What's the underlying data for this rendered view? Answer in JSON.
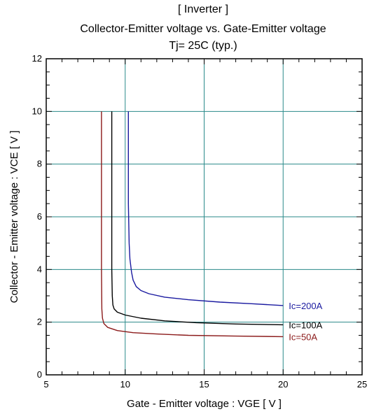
{
  "chart_data": {
    "type": "line",
    "title": [
      "[ Inverter ]",
      "Collector-Emitter voltage  vs. Gate-Emitter voltage",
      "Tj= 25C  (typ.)"
    ],
    "xlabel": "Gate - Emitter voltage  :  VGE  [ V ]",
    "ylabel": "Collector - Emitter voltage  :  VCE  [ V ]",
    "xlim": [
      5,
      25
    ],
    "ylim": [
      0,
      12
    ],
    "xticks": [
      "5",
      "10",
      "15",
      "20",
      "25"
    ],
    "yticks": [
      "0",
      "2",
      "4",
      "6",
      "8",
      "10",
      "12"
    ],
    "grid": true,
    "series": [
      {
        "name": "Ic=200A",
        "color": "#1a1aa0",
        "x": [
          10.2,
          10.2,
          10.25,
          10.3,
          10.4,
          10.5,
          10.7,
          11.0,
          11.5,
          12.5,
          14.0,
          16.0,
          18.0,
          20.0
        ],
        "y": [
          10.0,
          6.5,
          5.0,
          4.4,
          3.9,
          3.6,
          3.35,
          3.2,
          3.08,
          2.95,
          2.85,
          2.76,
          2.7,
          2.63
        ]
      },
      {
        "name": "Ic=100A",
        "color": "#000000",
        "x": [
          9.15,
          9.15,
          9.18,
          9.22,
          9.3,
          9.5,
          10.0,
          11.0,
          12.5,
          14.5,
          17.0,
          20.0
        ],
        "y": [
          10.0,
          4.0,
          3.0,
          2.65,
          2.5,
          2.38,
          2.27,
          2.15,
          2.05,
          1.98,
          1.93,
          1.9
        ]
      },
      {
        "name": "Ic=50A",
        "color": "#8b1a1a",
        "x": [
          8.5,
          8.5,
          8.52,
          8.56,
          8.65,
          8.9,
          9.5,
          10.5,
          12.0,
          14.0,
          17.0,
          20.0
        ],
        "y": [
          10.0,
          4.0,
          2.5,
          2.15,
          1.95,
          1.8,
          1.68,
          1.6,
          1.55,
          1.5,
          1.47,
          1.45
        ]
      }
    ]
  }
}
